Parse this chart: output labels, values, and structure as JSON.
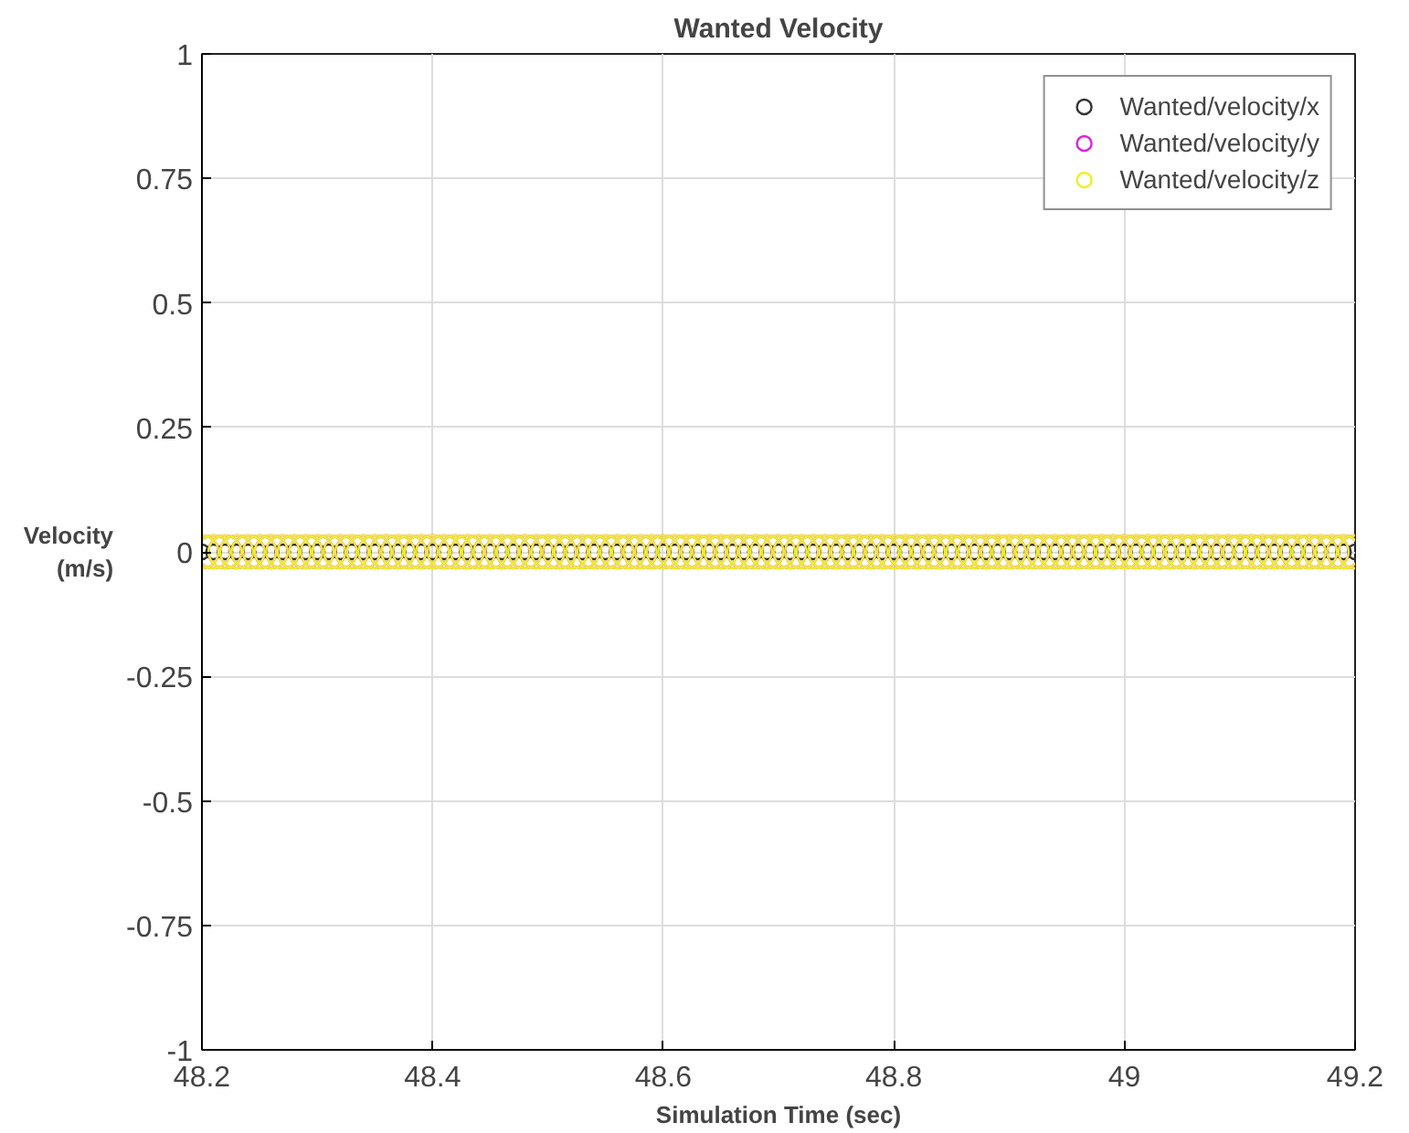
{
  "chart_data": {
    "type": "scatter",
    "title": "Wanted Velocity",
    "xlabel": "Simulation Time (sec)",
    "ylabel": "Velocity\n(m/s)",
    "x": [
      48.2,
      48.21,
      48.22,
      48.23,
      48.24,
      48.25,
      48.26,
      48.27,
      48.28,
      48.29,
      48.3,
      48.31,
      48.32,
      48.33,
      48.34,
      48.35,
      48.36,
      48.37,
      48.38,
      48.39,
      48.4,
      48.41,
      48.42,
      48.43,
      48.44,
      48.45,
      48.46,
      48.47,
      48.48,
      48.49,
      48.5,
      48.51,
      48.52,
      48.53,
      48.54,
      48.55,
      48.56,
      48.57,
      48.58,
      48.59,
      48.6,
      48.61,
      48.62,
      48.63,
      48.64,
      48.65,
      48.66,
      48.67,
      48.68,
      48.69,
      48.7,
      48.71,
      48.72,
      48.73,
      48.74,
      48.75,
      48.76,
      48.77,
      48.78,
      48.79,
      48.8,
      48.81,
      48.82,
      48.83,
      48.84,
      48.85,
      48.86,
      48.87,
      48.88,
      48.89,
      48.9,
      48.91,
      48.92,
      48.93,
      48.94,
      48.95,
      48.96,
      48.97,
      48.98,
      48.99,
      49.0,
      49.01,
      49.02,
      49.03,
      49.04,
      49.05,
      49.06,
      49.07,
      49.08,
      49.09,
      49.1,
      49.11,
      49.12,
      49.13,
      49.14,
      49.15,
      49.16,
      49.17,
      49.18,
      49.19,
      49.2
    ],
    "series": [
      {
        "name": "Wanted/velocity/x",
        "color": "#333333",
        "values": [
          0,
          0,
          0,
          0,
          0,
          0,
          0,
          0,
          0,
          0,
          0,
          0,
          0,
          0,
          0,
          0,
          0,
          0,
          0,
          0,
          0,
          0,
          0,
          0,
          0,
          0,
          0,
          0,
          0,
          0,
          0,
          0,
          0,
          0,
          0,
          0,
          0,
          0,
          0,
          0,
          0,
          0,
          0,
          0,
          0,
          0,
          0,
          0,
          0,
          0,
          0,
          0,
          0,
          0,
          0,
          0,
          0,
          0,
          0,
          0,
          0,
          0,
          0,
          0,
          0,
          0,
          0,
          0,
          0,
          0,
          0,
          0,
          0,
          0,
          0,
          0,
          0,
          0,
          0,
          0,
          0,
          0,
          0,
          0,
          0,
          0,
          0,
          0,
          0,
          0,
          0,
          0,
          0,
          0,
          0,
          0,
          0,
          0,
          0,
          0,
          0
        ]
      },
      {
        "name": "Wanted/velocity/y",
        "color": "#e020e0",
        "values": [
          0,
          0,
          0,
          0,
          0,
          0,
          0,
          0,
          0,
          0,
          0,
          0,
          0,
          0,
          0,
          0,
          0,
          0,
          0,
          0,
          0,
          0,
          0,
          0,
          0,
          0,
          0,
          0,
          0,
          0,
          0,
          0,
          0,
          0,
          0,
          0,
          0,
          0,
          0,
          0,
          0,
          0,
          0,
          0,
          0,
          0,
          0,
          0,
          0,
          0,
          0,
          0,
          0,
          0,
          0,
          0,
          0,
          0,
          0,
          0,
          0,
          0,
          0,
          0,
          0,
          0,
          0,
          0,
          0,
          0,
          0,
          0,
          0,
          0,
          0,
          0,
          0,
          0,
          0,
          0,
          0,
          0,
          0,
          0,
          0,
          0,
          0,
          0,
          0,
          0,
          0,
          0,
          0,
          0,
          0,
          0,
          0,
          0,
          0,
          0,
          0
        ]
      },
      {
        "name": "Wanted/velocity/z",
        "color": "#f0f020",
        "values": [
          0,
          0,
          0,
          0,
          0,
          0,
          0,
          0,
          0,
          0,
          0,
          0,
          0,
          0,
          0,
          0,
          0,
          0,
          0,
          0,
          0,
          0,
          0,
          0,
          0,
          0,
          0,
          0,
          0,
          0,
          0,
          0,
          0,
          0,
          0,
          0,
          0,
          0,
          0,
          0,
          0,
          0,
          0,
          0,
          0,
          0,
          0,
          0,
          0,
          0,
          0,
          0,
          0,
          0,
          0,
          0,
          0,
          0,
          0,
          0,
          0,
          0,
          0,
          0,
          0,
          0,
          0,
          0,
          0,
          0,
          0,
          0,
          0,
          0,
          0,
          0,
          0,
          0,
          0,
          0,
          0,
          0,
          0,
          0,
          0,
          0,
          0,
          0,
          0,
          0,
          0,
          0,
          0,
          0,
          0,
          0,
          0,
          0,
          0,
          0,
          0
        ]
      }
    ],
    "xlim": [
      48.2,
      49.2
    ],
    "xticks": [
      48.2,
      48.4,
      48.6,
      48.8,
      49,
      49.2
    ],
    "ylim": [
      -1,
      1
    ],
    "yticks": [
      -1,
      -0.75,
      -0.5,
      -0.25,
      0,
      0.25,
      0.5,
      0.75,
      1
    ],
    "grid": true,
    "legend": "top right",
    "marker": "circle"
  }
}
